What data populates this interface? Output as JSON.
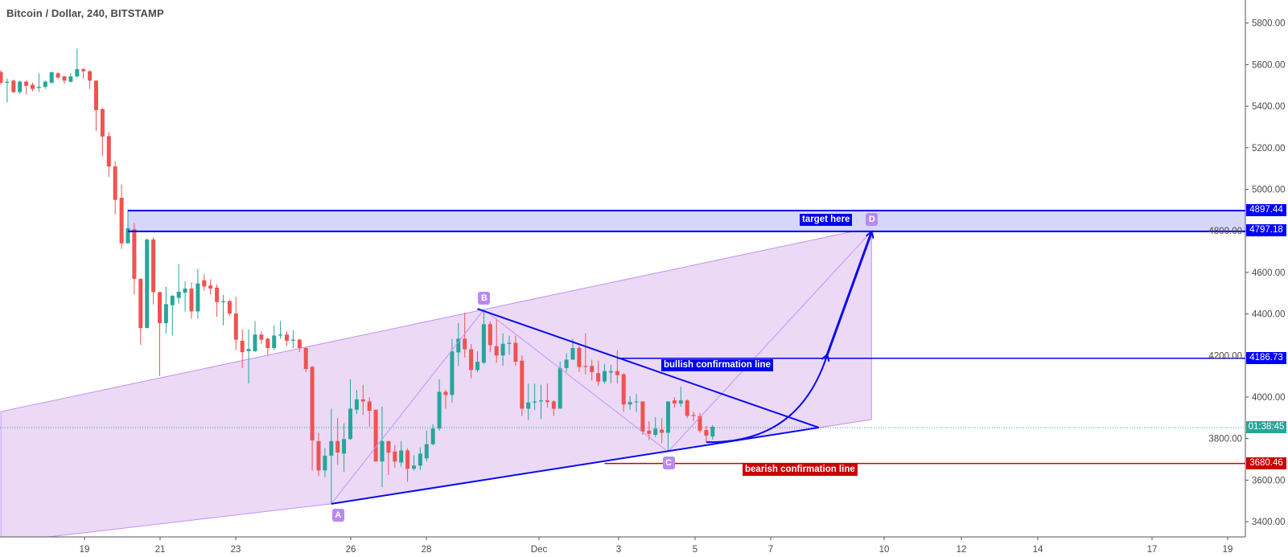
{
  "header": {
    "title": "Bitcoin / Dollar, 240, BITSTAMP"
  },
  "colors": {
    "up": "#26a69a",
    "down": "#ef5350",
    "pattern_blue": "#0a0af0",
    "pattern_fill": "#e9d5f5",
    "pattern_stroke": "#c393f3",
    "target_zone": "#d6d6fb",
    "bearish": "#cc0000",
    "countdown": "#26a69a"
  },
  "chart_data": {
    "type": "candlestick",
    "y_ticks": [
      "5800.00",
      "5600.00",
      "5400.00",
      "5200.00",
      "5000.00",
      "4800.00",
      "4600.00",
      "4400.00",
      "4200.00",
      "4000.00",
      "3800.00",
      "3600.00",
      "3400.00"
    ],
    "x_ticks": [
      "19",
      "21",
      "23",
      "26",
      "28",
      "Dec",
      "3",
      "5",
      "7",
      "10",
      "12",
      "14",
      "17",
      "19"
    ],
    "ylim": [
      3400,
      5800
    ],
    "grid": false,
    "candles_ohlc": [
      [
        5564,
        5573,
        5503,
        5513
      ],
      [
        5513,
        5533,
        5418,
        5518
      ],
      [
        5523,
        5528,
        5463,
        5468
      ],
      [
        5468,
        5523,
        5458,
        5518
      ],
      [
        5518,
        5523,
        5458,
        5498
      ],
      [
        5503,
        5513,
        5473,
        5483
      ],
      [
        5488,
        5558,
        5468,
        5493
      ],
      [
        5493,
        5523,
        5483,
        5518
      ],
      [
        5513,
        5568,
        5508,
        5563
      ],
      [
        5558,
        5563,
        5533,
        5538
      ],
      [
        5543,
        5548,
        5508,
        5523
      ],
      [
        5518,
        5558,
        5513,
        5543
      ],
      [
        5543,
        5678,
        5538,
        5578
      ],
      [
        5578,
        5583,
        5533,
        5568
      ],
      [
        5568,
        5573,
        5483,
        5523
      ],
      [
        5523,
        5523,
        5281,
        5381
      ],
      [
        5386,
        5390,
        5160,
        5254
      ],
      [
        5256,
        5276,
        5060,
        5110
      ],
      [
        5110,
        5135,
        4879,
        4949
      ],
      [
        4959,
        5024,
        4713,
        4740
      ],
      [
        4740,
        4904,
        4740,
        4813
      ],
      [
        4808,
        4838,
        4494,
        4569
      ],
      [
        4569,
        4572,
        4251,
        4332
      ],
      [
        4332,
        4763,
        4332,
        4758
      ],
      [
        4758,
        4768,
        4446,
        4505
      ],
      [
        4505,
        4507,
        4103,
        4356
      ],
      [
        4356,
        4532,
        4306,
        4447
      ],
      [
        4442,
        4492,
        4296,
        4487
      ],
      [
        4477,
        4640,
        4450,
        4507
      ],
      [
        4502,
        4557,
        4411,
        4522
      ],
      [
        4522,
        4552,
        4376,
        4412
      ],
      [
        4412,
        4617,
        4376,
        4547
      ],
      [
        4562,
        4592,
        4512,
        4532
      ],
      [
        4537,
        4567,
        4492,
        4522
      ],
      [
        4527,
        4542,
        4386,
        4457
      ],
      [
        4457,
        4492,
        4346,
        4462
      ],
      [
        4462,
        4467,
        4392,
        4402
      ],
      [
        4402,
        4482,
        4226,
        4276
      ],
      [
        4271,
        4326,
        4140,
        4216
      ],
      [
        4221,
        4326,
        4065,
        4231
      ],
      [
        4221,
        4366,
        4216,
        4301
      ],
      [
        4301,
        4316,
        4256,
        4276
      ],
      [
        4281,
        4286,
        4201,
        4236
      ],
      [
        4236,
        4346,
        4226,
        4296
      ],
      [
        4296,
        4366,
        4281,
        4301
      ],
      [
        4301,
        4316,
        4246,
        4271
      ],
      [
        4271,
        4321,
        4236,
        4276
      ],
      [
        4276,
        4281,
        4216,
        4236
      ],
      [
        4236,
        4241,
        4120,
        4135
      ],
      [
        4145,
        4150,
        3645,
        3791
      ],
      [
        3788,
        3828,
        3620,
        3647
      ],
      [
        3647,
        3755,
        3615,
        3718
      ],
      [
        3718,
        3944,
        3486,
        3788
      ],
      [
        3788,
        3899,
        3673,
        3733
      ],
      [
        3728,
        3874,
        3640,
        3798
      ],
      [
        3798,
        4085,
        3793,
        3944
      ],
      [
        3939,
        4034,
        3919,
        3989
      ],
      [
        3989,
        4059,
        3914,
        3979
      ],
      [
        3979,
        3999,
        3858,
        3934
      ],
      [
        3939,
        3939,
        3690,
        3690
      ],
      [
        3690,
        3954,
        3567,
        3788
      ],
      [
        3788,
        3788,
        3625,
        3733
      ],
      [
        3738,
        3768,
        3660,
        3690
      ],
      [
        3685,
        3788,
        3665,
        3743
      ],
      [
        3743,
        3753,
        3592,
        3655
      ],
      [
        3655,
        3720,
        3647,
        3670
      ],
      [
        3670,
        3758,
        3650,
        3728
      ],
      [
        3705,
        3838,
        3690,
        3773
      ],
      [
        3773,
        3869,
        3768,
        3849
      ],
      [
        3849,
        4085,
        3838,
        4025
      ],
      [
        4025,
        4034,
        3944,
        4010
      ],
      [
        4010,
        4280,
        3974,
        4220
      ],
      [
        4215,
        4356,
        4150,
        4281
      ],
      [
        4281,
        4406,
        4190,
        4230
      ],
      [
        4230,
        4255,
        4090,
        4130
      ],
      [
        4130,
        4220,
        4120,
        4170
      ],
      [
        4165,
        4421,
        4160,
        4351
      ],
      [
        4351,
        4366,
        4216,
        4250
      ],
      [
        4245,
        4376,
        4165,
        4200
      ],
      [
        4200,
        4306,
        4150,
        4256
      ],
      [
        4256,
        4296,
        4205,
        4261
      ],
      [
        4261,
        4296,
        4150,
        4170
      ],
      [
        4175,
        4200,
        3909,
        3944
      ],
      [
        3944,
        4065,
        3889,
        3974
      ],
      [
        3974,
        4065,
        3939,
        3979
      ],
      [
        3979,
        4060,
        3894,
        3984
      ],
      [
        3984,
        4065,
        3949,
        3976
      ],
      [
        3979,
        3984,
        3909,
        3944
      ],
      [
        3944,
        4170,
        3944,
        4140
      ],
      [
        4140,
        4210,
        4120,
        4180
      ],
      [
        4180,
        4281,
        4180,
        4236
      ],
      [
        4236,
        4246,
        4120,
        4145
      ],
      [
        4150,
        4306,
        4110,
        4145
      ],
      [
        4150,
        4180,
        4080,
        4120
      ],
      [
        4115,
        4175,
        4055,
        4075
      ],
      [
        4075,
        4160,
        4065,
        4125
      ],
      [
        4118,
        4155,
        4065,
        4125
      ],
      [
        4125,
        4225,
        4065,
        4105
      ],
      [
        4110,
        4115,
        3929,
        3964
      ],
      [
        3964,
        4004,
        3939,
        3976
      ],
      [
        3976,
        4014,
        3929,
        3979
      ],
      [
        3979,
        3979,
        3818,
        3833
      ],
      [
        3838,
        3884,
        3793,
        3823
      ],
      [
        3818,
        3903,
        3808,
        3848
      ],
      [
        3843,
        3898,
        3778,
        3828
      ],
      [
        3828,
        3979,
        3737,
        3979
      ],
      [
        3984,
        3999,
        3949,
        3969
      ],
      [
        3969,
        4049,
        3954,
        3984
      ],
      [
        3984,
        3989,
        3899,
        3909
      ],
      [
        3914,
        3929,
        3884,
        3909
      ],
      [
        3909,
        3924,
        3828,
        3838
      ],
      [
        3841,
        3861,
        3783,
        3814
      ],
      [
        3810,
        3865,
        3795,
        3857
      ]
    ],
    "current_price": 3853,
    "drawings": {
      "points": {
        "A": {
          "bar": 52,
          "price": 3486
        },
        "B": {
          "bar": 76,
          "price": 4421
        },
        "C": {
          "bar": 105,
          "price": 3737
        },
        "D": {
          "bar": 137,
          "price": 4797.18
        }
      },
      "apex": {
        "bar": 128.7,
        "price": 3853
      },
      "fan_upper_left": {
        "bar": 0,
        "price": 3930
      },
      "fan_upper_right": {
        "bar": 137,
        "price": 4816
      },
      "fan_lower_right": {
        "bar": 137,
        "price": 3892
      },
      "fan_lower_left": {
        "bar": 0,
        "price": 3300
      },
      "curve_start": {
        "bar": 111,
        "price": 3783
      },
      "curve_end": {
        "bar": 130,
        "price": 4201
      },
      "target_zone": {
        "start_bar": 20,
        "low": 4797.18,
        "high": 4897.44
      },
      "bullish_line": {
        "start_bar": 97,
        "price": 4186.73
      },
      "bearish_line": {
        "start_bar": 95,
        "price": 3680.46
      }
    }
  },
  "labels": {
    "A": "A",
    "B": "B",
    "C": "C",
    "D": "D",
    "target": "target here",
    "bullish": "bullish confirmation line",
    "bearish": "bearish confirmation line"
  },
  "price_axis_labels": {
    "zone_high": "4897.44",
    "zone_low": "4797.18",
    "bullish": "4186.73",
    "countdown": "01:38:45",
    "bearish": "3680.46"
  }
}
